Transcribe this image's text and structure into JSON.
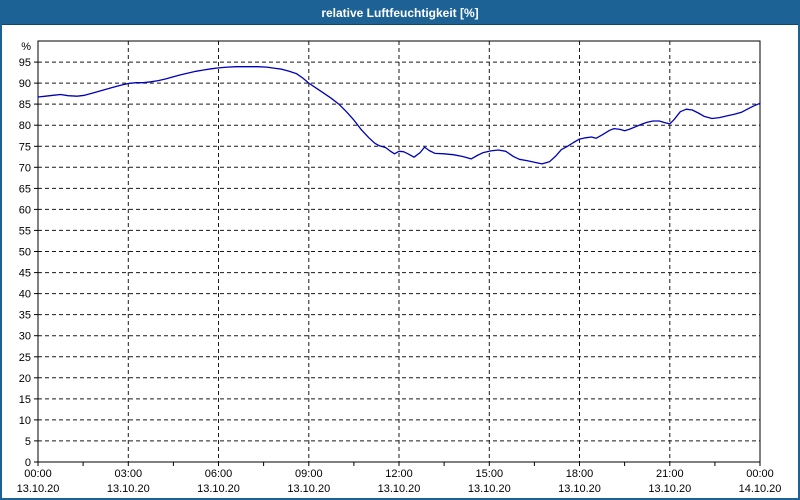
{
  "window": {
    "title": "relative Luftfeuchtigkeit [%]"
  },
  "colors": {
    "titlebar_bg": "#1d6295",
    "titlebar_text": "#ffffff",
    "window_border": "#1d6295",
    "plot_bg": "#ffffff",
    "grid": "#1a1a1a",
    "axis": "#000000",
    "line": "#0000bb"
  },
  "chart_data": {
    "type": "line",
    "title": "relative Luftfeuchtigkeit [%]",
    "xlabel": "",
    "ylabel": "%",
    "ylim": [
      0,
      100
    ],
    "ytick_step": 5,
    "ytick_max": 95,
    "x_hours_range": [
      0,
      24
    ],
    "x_minor_tick_hours": 1.5,
    "grid": "dashed",
    "legend": "none",
    "xticks": [
      {
        "hour": 0,
        "time": "00:00",
        "date": "13.10.20"
      },
      {
        "hour": 3,
        "time": "03:00",
        "date": "13.10.20"
      },
      {
        "hour": 6,
        "time": "06:00",
        "date": "13.10.20"
      },
      {
        "hour": 9,
        "time": "09:00",
        "date": "13.10.20"
      },
      {
        "hour": 12,
        "time": "12:00",
        "date": "13.10.20"
      },
      {
        "hour": 15,
        "time": "15:00",
        "date": "13.10.20"
      },
      {
        "hour": 18,
        "time": "18:00",
        "date": "13.10.20"
      },
      {
        "hour": 21,
        "time": "21:00",
        "date": "13.10.20"
      },
      {
        "hour": 24,
        "time": "00:00",
        "date": "14.10.20"
      }
    ],
    "series": [
      {
        "name": "relative Luftfeuchtigkeit",
        "color": "#0000bb",
        "points": [
          [
            0.0,
            86.7
          ],
          [
            0.25,
            86.9
          ],
          [
            0.5,
            87.1
          ],
          [
            0.75,
            87.3
          ],
          [
            1.0,
            87.0
          ],
          [
            1.3,
            86.9
          ],
          [
            1.55,
            87.1
          ],
          [
            1.75,
            87.5
          ],
          [
            2.0,
            88.0
          ],
          [
            2.25,
            88.5
          ],
          [
            2.5,
            89.0
          ],
          [
            2.75,
            89.5
          ],
          [
            3.0,
            89.9
          ],
          [
            3.25,
            90.1
          ],
          [
            3.5,
            90.1
          ],
          [
            3.75,
            90.3
          ],
          [
            4.0,
            90.6
          ],
          [
            4.25,
            91.0
          ],
          [
            4.5,
            91.5
          ],
          [
            4.75,
            92.0
          ],
          [
            5.0,
            92.4
          ],
          [
            5.25,
            92.8
          ],
          [
            5.5,
            93.1
          ],
          [
            5.75,
            93.4
          ],
          [
            6.0,
            93.6
          ],
          [
            6.3,
            93.8
          ],
          [
            6.6,
            93.9
          ],
          [
            7.0,
            93.9
          ],
          [
            7.3,
            93.9
          ],
          [
            7.6,
            93.8
          ],
          [
            7.9,
            93.5
          ],
          [
            8.1,
            93.3
          ],
          [
            8.35,
            92.8
          ],
          [
            8.6,
            92.2
          ],
          [
            8.8,
            91.2
          ],
          [
            9.0,
            90.0
          ],
          [
            9.25,
            88.8
          ],
          [
            9.5,
            87.6
          ],
          [
            9.75,
            86.4
          ],
          [
            10.0,
            85.0
          ],
          [
            10.25,
            83.2
          ],
          [
            10.5,
            81.2
          ],
          [
            10.75,
            78.9
          ],
          [
            11.0,
            77.0
          ],
          [
            11.2,
            75.7
          ],
          [
            11.35,
            75.1
          ],
          [
            11.55,
            74.7
          ],
          [
            11.7,
            73.9
          ],
          [
            11.85,
            73.2
          ],
          [
            12.0,
            73.8
          ],
          [
            12.15,
            73.7
          ],
          [
            12.3,
            73.2
          ],
          [
            12.5,
            72.4
          ],
          [
            12.7,
            73.5
          ],
          [
            12.85,
            74.8
          ],
          [
            13.0,
            74.0
          ],
          [
            13.2,
            73.3
          ],
          [
            13.5,
            73.2
          ],
          [
            13.8,
            73.0
          ],
          [
            14.1,
            72.6
          ],
          [
            14.4,
            72.0
          ],
          [
            14.6,
            72.8
          ],
          [
            14.8,
            73.5
          ],
          [
            15.05,
            73.9
          ],
          [
            15.3,
            74.1
          ],
          [
            15.55,
            73.8
          ],
          [
            15.8,
            72.6
          ],
          [
            16.0,
            71.9
          ],
          [
            16.25,
            71.6
          ],
          [
            16.5,
            71.2
          ],
          [
            16.75,
            70.8
          ],
          [
            17.0,
            71.3
          ],
          [
            17.2,
            72.6
          ],
          [
            17.4,
            74.2
          ],
          [
            17.6,
            75.0
          ],
          [
            17.8,
            75.9
          ],
          [
            18.0,
            76.7
          ],
          [
            18.2,
            77.0
          ],
          [
            18.4,
            77.2
          ],
          [
            18.55,
            76.9
          ],
          [
            18.75,
            77.7
          ],
          [
            19.0,
            78.8
          ],
          [
            19.15,
            79.2
          ],
          [
            19.35,
            79.0
          ],
          [
            19.5,
            78.7
          ],
          [
            19.65,
            79.0
          ],
          [
            19.85,
            79.6
          ],
          [
            20.05,
            80.2
          ],
          [
            20.25,
            80.7
          ],
          [
            20.45,
            81.0
          ],
          [
            20.65,
            81.0
          ],
          [
            20.85,
            80.6
          ],
          [
            21.0,
            80.3
          ],
          [
            21.15,
            81.4
          ],
          [
            21.35,
            83.2
          ],
          [
            21.55,
            83.8
          ],
          [
            21.75,
            83.6
          ],
          [
            21.95,
            82.9
          ],
          [
            22.15,
            82.1
          ],
          [
            22.4,
            81.6
          ],
          [
            22.65,
            81.8
          ],
          [
            22.9,
            82.2
          ],
          [
            23.15,
            82.6
          ],
          [
            23.4,
            83.1
          ],
          [
            23.6,
            83.9
          ],
          [
            23.8,
            84.6
          ],
          [
            24.0,
            85.2
          ]
        ]
      }
    ]
  }
}
